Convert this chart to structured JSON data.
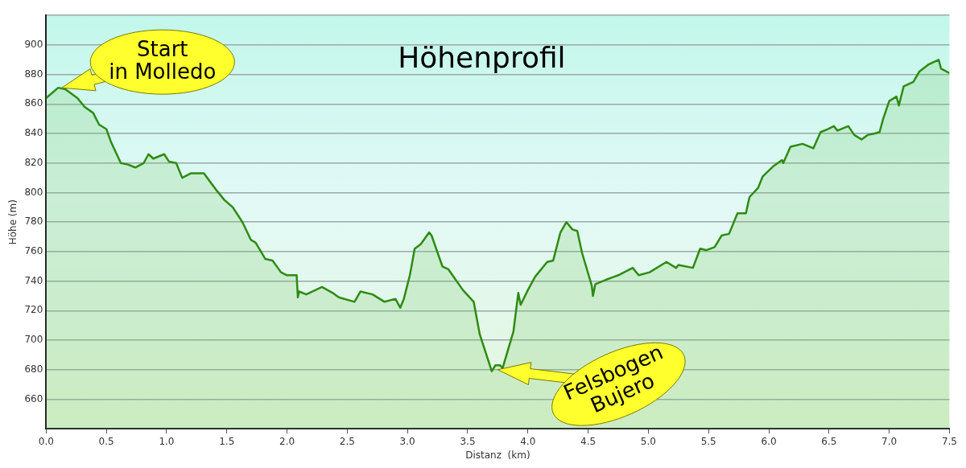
{
  "chart_data": {
    "type": "area",
    "title": "Höhenprofil",
    "xlabel": "Distanz  (km)",
    "ylabel": "Höhe (m)",
    "xlim": [
      0,
      7.5
    ],
    "xticks": [
      {
        "value": 0,
        "label": "0.0"
      },
      0.5,
      {
        "value": 1,
        "label": "1.0"
      },
      1.5,
      {
        "value": 2,
        "label": "2.0"
      },
      2.5,
      {
        "value": 3,
        "label": "3.0"
      },
      3.5,
      {
        "value": 4,
        "label": "4.0"
      },
      4.5,
      {
        "value": 5,
        "label": "5.0"
      },
      5.5,
      {
        "value": 6,
        "label": "6.0"
      },
      6.5,
      {
        "value": 7,
        "label": "7.0"
      },
      7.5
    ],
    "ylim": [
      640,
      920
    ],
    "yticks": [
      {
        "value": 640,
        "label": null
      },
      660,
      680,
      700,
      720,
      740,
      760,
      780,
      800,
      820,
      840,
      860,
      880,
      900,
      {
        "value": 920,
        "label": null
      }
    ],
    "grid": "y",
    "legend": false,
    "marker": "none",
    "line_style": "solid",
    "series": [
      {
        "color": "#2e8b12",
        "x": [
          0,
          0.1,
          0.16,
          0.26,
          0.32,
          0.39,
          0.44,
          0.5,
          0.54,
          0.62,
          0.68,
          0.74,
          0.81,
          0.85,
          0.89,
          0.98,
          1.02,
          1.08,
          1.13,
          1.2,
          1.31,
          1.42,
          1.48,
          1.55,
          1.63,
          1.7,
          1.74,
          1.82,
          1.88,
          1.95,
          2.0,
          2.08,
          2.09,
          2.1,
          2.16,
          2.29,
          2.38,
          2.43,
          2.56,
          2.61,
          2.71,
          2.81,
          2.9,
          2.94,
          2.97,
          3.02,
          3.06,
          3.11,
          3.18,
          3.2,
          3.29,
          3.34,
          3.46,
          3.55,
          3.6,
          3.7,
          3.73,
          3.77,
          3.79,
          3.88,
          3.92,
          3.94,
          4.0,
          4.06,
          4.16,
          4.21,
          4.27,
          4.32,
          4.37,
          4.41,
          4.45,
          4.53,
          4.54,
          4.56,
          4.65,
          4.75,
          4.87,
          4.92,
          5.01,
          5.15,
          5.23,
          5.25,
          5.37,
          5.43,
          5.48,
          5.55,
          5.61,
          5.67,
          5.74,
          5.81,
          5.84,
          5.91,
          5.95,
          6.04,
          6.11,
          6.12,
          6.18,
          6.28,
          6.37,
          6.43,
          6.49,
          6.54,
          6.57,
          6.66,
          6.71,
          6.77,
          6.82,
          6.88,
          6.92,
          6.95,
          7.0,
          7.06,
          7.08,
          7.12,
          7.2,
          7.25,
          7.33,
          7.41,
          7.43,
          7.5
        ],
        "values": [
          864,
          871,
          870,
          864,
          858,
          854,
          846,
          843,
          834,
          820,
          819,
          817,
          820,
          826,
          823,
          826,
          821,
          820,
          810,
          813,
          813,
          801,
          795,
          790,
          780,
          768,
          766,
          755,
          754,
          746,
          744,
          744,
          729,
          733,
          731,
          736,
          732,
          729,
          726,
          733,
          731,
          726,
          728,
          722,
          728,
          744,
          762,
          765,
          773,
          771,
          750,
          748,
          734,
          726,
          704,
          679,
          683,
          683,
          681,
          706,
          732,
          724,
          734,
          743,
          753,
          754,
          773,
          780,
          775,
          774,
          759,
          737,
          730,
          738,
          741,
          744,
          749,
          744,
          746,
          753,
          749,
          751,
          749,
          762,
          761,
          763,
          771,
          772,
          786,
          786,
          797,
          803,
          811,
          818,
          822,
          820,
          831,
          833,
          830,
          841,
          843,
          845,
          842,
          845,
          839,
          836,
          839,
          840,
          841,
          850,
          862,
          865,
          859,
          872,
          875,
          882,
          887,
          890,
          884,
          881
        ]
      }
    ],
    "annotations": [
      {
        "text": "Start in Molledo",
        "x": 0.13,
        "y": 871
      },
      {
        "text": "Felsbogen Bujero",
        "x": 3.75,
        "y": 680
      }
    ]
  }
}
